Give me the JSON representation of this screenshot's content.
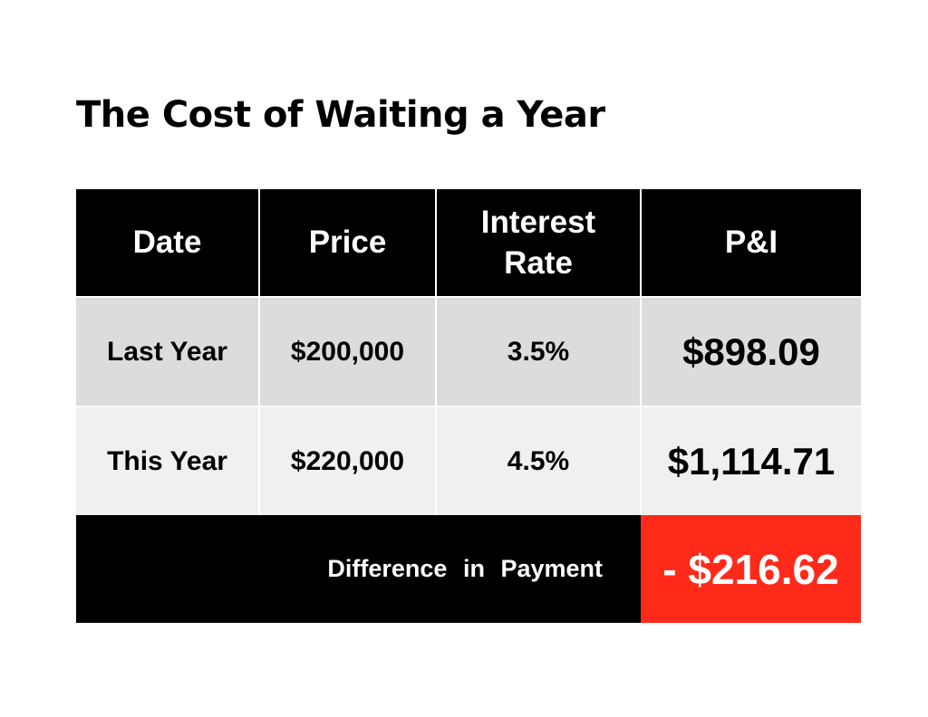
{
  "title": "The Cost of Waiting a Year",
  "table": {
    "headers": {
      "date": "Date",
      "price": "Price",
      "interest_line1": "Interest",
      "interest_line2": "Rate",
      "pi": "P&I"
    },
    "rows": [
      {
        "date": "Last Year",
        "price": "$200,000",
        "rate": "3.5%",
        "pi": "$898.09"
      },
      {
        "date": "This Year",
        "price": "$220,000",
        "rate": "4.5%",
        "pi": "$1,114.71"
      }
    ],
    "footer": {
      "label": "Difference in Payment",
      "value": "- $216.62"
    }
  },
  "colors": {
    "header_bg": "#000000",
    "row1_bg": "#dcdcdc",
    "row2_bg": "#f0f0f0",
    "highlight": "#ff2a1a"
  }
}
